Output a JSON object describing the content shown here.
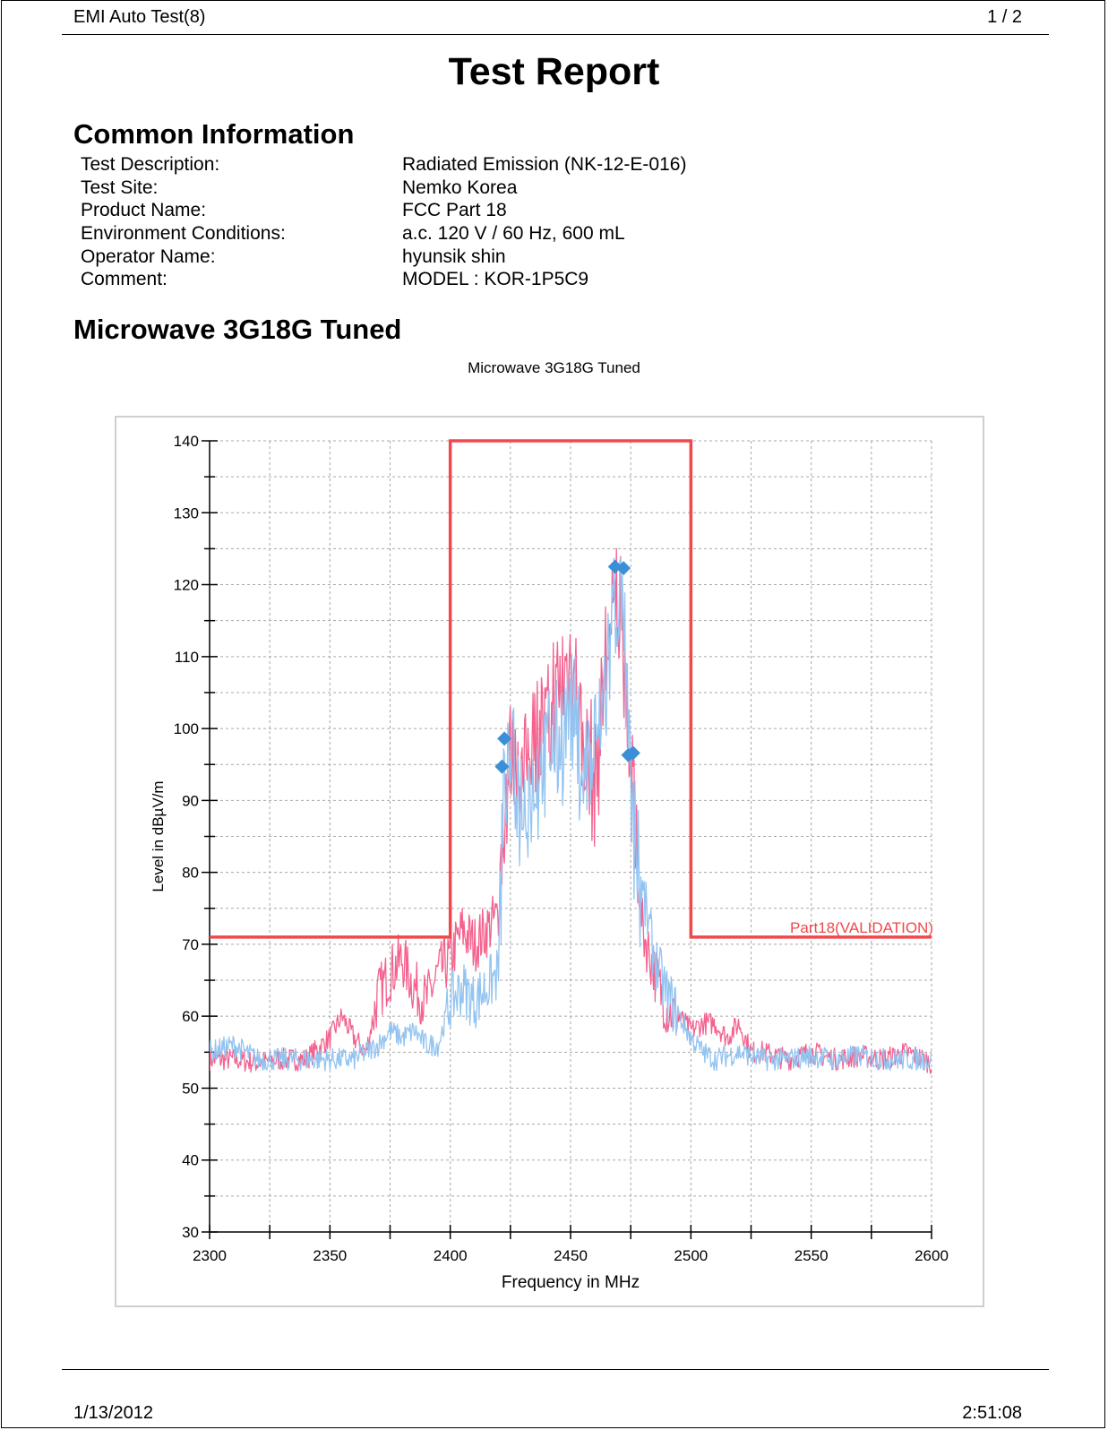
{
  "header": {
    "app_title": "EMI Auto Test(8)",
    "page": "1 / 2"
  },
  "report_title": "Test Report",
  "common_info": {
    "heading": "Common Information",
    "rows": [
      {
        "key": "Test Description:",
        "value": "Radiated Emission (NK-12-E-016)"
      },
      {
        "key": "Test Site:",
        "value": "Nemko Korea"
      },
      {
        "key": "Product Name:",
        "value": "FCC Part 18"
      },
      {
        "key": "Environment Conditions:",
        "value": "a.c. 120 V / 60 Hz, 600 mL"
      },
      {
        "key": "Operator Name:",
        "value": "hyunsik shin"
      },
      {
        "key": "Comment:",
        "value": "MODEL : KOR-1P5C9"
      }
    ]
  },
  "section_heading": "Microwave 3G18G Tuned",
  "footer": {
    "date": "1/13/2012",
    "time": "2:51:08"
  },
  "colors": {
    "limit": "#f0484b",
    "trace_pink": "#f4628e",
    "trace_blue": "#93c4f1",
    "marker": "#3b8fd6",
    "grid": "#a8a8a8"
  },
  "chart_data": {
    "type": "line",
    "title": "Microwave 3G18G Tuned",
    "xlabel": "Frequency in MHz",
    "ylabel": "Level in dBµV/m",
    "xlim": [
      2300,
      2600
    ],
    "ylim": [
      30,
      140
    ],
    "x_ticks": [
      2300,
      2350,
      2400,
      2450,
      2500,
      2550,
      2600
    ],
    "y_ticks": [
      30,
      40,
      50,
      60,
      70,
      80,
      90,
      100,
      110,
      120,
      130,
      140
    ],
    "grid": true,
    "limit_line": {
      "label": "Part18(VALIDATION)",
      "points": [
        [
          2300,
          71
        ],
        [
          2400,
          71
        ],
        [
          2400,
          140
        ],
        [
          2500,
          140
        ],
        [
          2500,
          71
        ],
        [
          2600,
          71
        ]
      ]
    },
    "series": [
      {
        "color": "trace_pink",
        "x": [
          2300,
          2310,
          2320,
          2330,
          2340,
          2350,
          2355,
          2360,
          2365,
          2370,
          2375,
          2380,
          2385,
          2390,
          2395,
          2400,
          2405,
          2410,
          2415,
          2420,
          2422,
          2425,
          2430,
          2435,
          2440,
          2445,
          2450,
          2455,
          2460,
          2465,
          2468,
          2470,
          2472,
          2475,
          2478,
          2480,
          2485,
          2490,
          2495,
          2500,
          2505,
          2510,
          2515,
          2520,
          2525,
          2530,
          2540,
          2550,
          2560,
          2570,
          2580,
          2590,
          2600
        ],
        "y": [
          54,
          54,
          53.5,
          54,
          54,
          57,
          60,
          57,
          55,
          63,
          66,
          68,
          64,
          62,
          66,
          68,
          72,
          70,
          72,
          74,
          92,
          101,
          96,
          104,
          104,
          108,
          113,
          102,
          96,
          113,
          118,
          121,
          117,
          98,
          80,
          72,
          66,
          61,
          60,
          58,
          59,
          59,
          57,
          59,
          55,
          55,
          54,
          55,
          54,
          54.5,
          54,
          55,
          53.5
        ]
      },
      {
        "color": "trace_blue",
        "x": [
          2300,
          2310,
          2320,
          2330,
          2340,
          2350,
          2360,
          2365,
          2370,
          2375,
          2380,
          2385,
          2390,
          2395,
          2400,
          2405,
          2410,
          2415,
          2420,
          2422,
          2425,
          2430,
          2435,
          2440,
          2445,
          2450,
          2455,
          2460,
          2465,
          2468,
          2470,
          2472,
          2474,
          2476,
          2480,
          2485,
          2490,
          2495,
          2500,
          2505,
          2510,
          2520,
          2530,
          2540,
          2550,
          2560,
          2570,
          2580,
          2590,
          2600
        ],
        "y": [
          55,
          56,
          54,
          54,
          54,
          54,
          54,
          55,
          56,
          58,
          57,
          58,
          56,
          56,
          62,
          64,
          62,
          64,
          66,
          94,
          99,
          92,
          96,
          100,
          100,
          108,
          96,
          100,
          110,
          122,
          121,
          120,
          100,
          88,
          77,
          68,
          63,
          60,
          57,
          55,
          54,
          55,
          54,
          54,
          54.5,
          54,
          54.5,
          54,
          54,
          54
        ]
      }
    ],
    "markers": [
      {
        "x": 2421.5,
        "y": 94.7
      },
      {
        "x": 2422.5,
        "y": 98.6
      },
      {
        "x": 2468.5,
        "y": 122.5
      },
      {
        "x": 2472,
        "y": 122.3
      },
      {
        "x": 2474,
        "y": 96.3
      },
      {
        "x": 2476,
        "y": 96.6
      }
    ]
  }
}
